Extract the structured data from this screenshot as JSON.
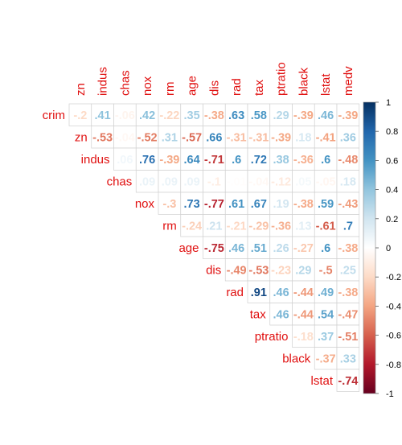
{
  "chart_data": {
    "type": "heatmap",
    "style": "upper triangle correlation plot, numbers in cells",
    "variables": [
      "crim",
      "zn",
      "indus",
      "chas",
      "nox",
      "rm",
      "age",
      "dis",
      "rad",
      "tax",
      "ptratio",
      "black",
      "lstat",
      "medv"
    ],
    "columns": [
      "zn",
      "indus",
      "chas",
      "nox",
      "rm",
      "age",
      "dis",
      "rad",
      "tax",
      "ptratio",
      "black",
      "lstat",
      "medv"
    ],
    "rows": [
      "crim",
      "zn",
      "indus",
      "chas",
      "nox",
      "rm",
      "age",
      "dis",
      "rad",
      "tax",
      "ptratio",
      "black",
      "lstat"
    ],
    "matrix": [
      [
        -0.2,
        0.41,
        -0.06,
        0.42,
        -0.22,
        0.35,
        -0.38,
        0.63,
        0.58,
        0.29,
        -0.39,
        0.46,
        -0.39
      ],
      [
        null,
        -0.53,
        -0.04,
        -0.52,
        0.31,
        -0.57,
        0.66,
        -0.31,
        -0.31,
        -0.39,
        0.18,
        -0.41,
        0.36
      ],
      [
        null,
        null,
        0.06,
        0.76,
        -0.39,
        0.64,
        -0.71,
        0.6,
        0.72,
        0.38,
        -0.36,
        0.6,
        -0.48
      ],
      [
        null,
        null,
        null,
        0.09,
        0.09,
        0.09,
        -0.1,
        -0.01,
        -0.04,
        -0.12,
        0.05,
        -0.05,
        0.18
      ],
      [
        null,
        null,
        null,
        null,
        -0.3,
        0.73,
        -0.77,
        0.61,
        0.67,
        0.19,
        -0.38,
        0.59,
        -0.43
      ],
      [
        null,
        null,
        null,
        null,
        null,
        -0.24,
        0.21,
        -0.21,
        -0.29,
        -0.36,
        0.13,
        -0.61,
        0.7
      ],
      [
        null,
        null,
        null,
        null,
        null,
        null,
        -0.75,
        0.46,
        0.51,
        0.26,
        -0.27,
        0.6,
        -0.38
      ],
      [
        null,
        null,
        null,
        null,
        null,
        null,
        null,
        -0.49,
        -0.53,
        -0.23,
        0.29,
        -0.5,
        0.25
      ],
      [
        null,
        null,
        null,
        null,
        null,
        null,
        null,
        null,
        0.91,
        0.46,
        -0.44,
        0.49,
        -0.38
      ],
      [
        null,
        null,
        null,
        null,
        null,
        null,
        null,
        null,
        null,
        0.46,
        -0.44,
        0.54,
        -0.47
      ],
      [
        null,
        null,
        null,
        null,
        null,
        null,
        null,
        null,
        null,
        null,
        -0.18,
        0.37,
        -0.51
      ],
      [
        null,
        null,
        null,
        null,
        null,
        null,
        null,
        null,
        null,
        null,
        null,
        -0.37,
        0.33
      ],
      [
        null,
        null,
        null,
        null,
        null,
        null,
        null,
        null,
        null,
        null,
        null,
        null,
        -0.74
      ]
    ],
    "colorbar": {
      "range": [
        -1,
        1
      ],
      "ticks": [
        "1",
        "0.8",
        "0.6",
        "0.4",
        "0.2",
        "0",
        "-0.2",
        "-0.4",
        "-0.6",
        "-0.8",
        "-1"
      ],
      "colors": {
        "negative_end": "#67001f",
        "negative_mid": "#d6604d",
        "zero": "#ffffff",
        "positive_mid": "#4393c3",
        "positive_end": "#053061"
      }
    },
    "label_color": "#e01010",
    "grid": true,
    "legend_position": "right"
  }
}
